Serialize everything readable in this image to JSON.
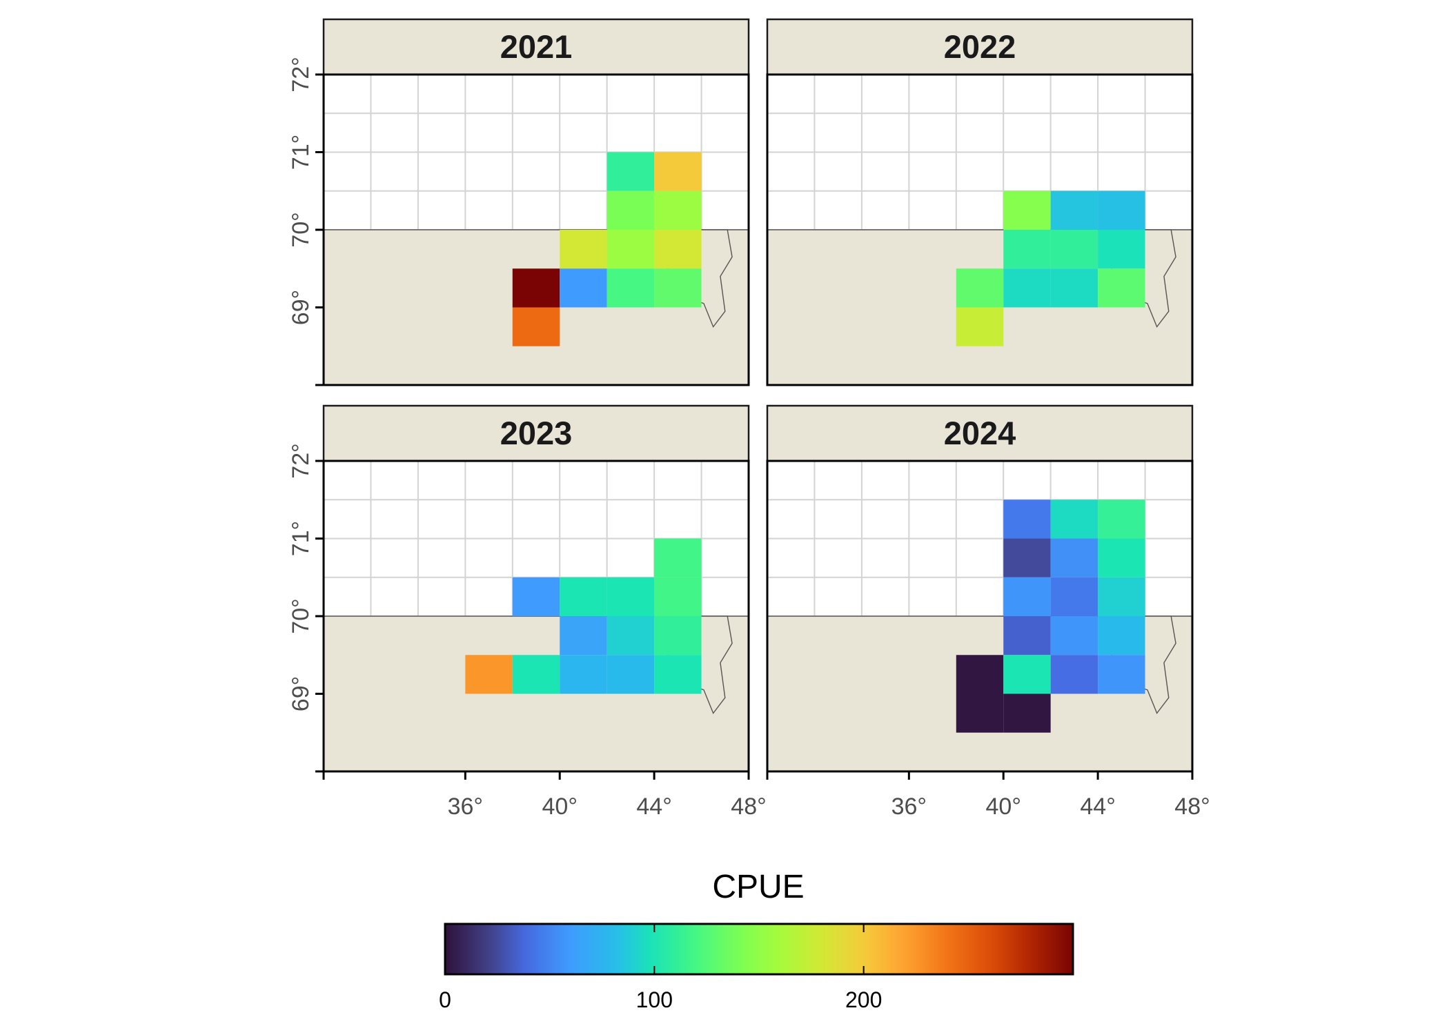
{
  "chart_data": {
    "type": "heatmap",
    "title": "",
    "xlabel": "",
    "ylabel": "",
    "xlim": [
      30,
      48
    ],
    "ylim": [
      68,
      72
    ],
    "x_ticks": [
      {
        "value": 36,
        "label": "36°"
      },
      {
        "value": 40,
        "label": "40°"
      },
      {
        "value": 44,
        "label": "44°"
      },
      {
        "value": 48,
        "label": "48°"
      }
    ],
    "y_ticks": [
      {
        "value": 69,
        "label": "69°"
      },
      {
        "value": 70,
        "label": "70°"
      },
      {
        "value": 71,
        "label": "71°"
      },
      {
        "value": 72,
        "label": "72°"
      }
    ],
    "cell_size": {
      "lon": 2,
      "lat": 0.5
    },
    "grid": true,
    "colors": {
      "land": "#e8e4d6",
      "land_outline": "#555555",
      "strip_fill": "#e8e4d6",
      "grid_line": "#d3d3d3"
    },
    "colorbar": {
      "title": "CPUE",
      "min": 0,
      "max": 300,
      "ticks": [
        {
          "value": 0,
          "label": "0"
        },
        {
          "value": 100,
          "label": "100"
        },
        {
          "value": 200,
          "label": "200"
        }
      ],
      "palette": "turbo"
    },
    "facets": [
      {
        "label": "2021",
        "cells": [
          {
            "lon": 42,
            "lat": 70.5,
            "value": 110
          },
          {
            "lon": 44,
            "lat": 70.5,
            "value": 200
          },
          {
            "lon": 42,
            "lat": 70.0,
            "value": 140
          },
          {
            "lon": 44,
            "lat": 70.0,
            "value": 155
          },
          {
            "lon": 40,
            "lat": 69.5,
            "value": 180
          },
          {
            "lon": 42,
            "lat": 69.5,
            "value": 155
          },
          {
            "lon": 44,
            "lat": 69.5,
            "value": 180
          },
          {
            "lon": 38,
            "lat": 69.0,
            "value": 300
          },
          {
            "lon": 40,
            "lat": 69.0,
            "value": 60
          },
          {
            "lon": 42,
            "lat": 69.0,
            "value": 120
          },
          {
            "lon": 44,
            "lat": 69.0,
            "value": 130
          },
          {
            "lon": 38,
            "lat": 68.5,
            "value": 245
          }
        ]
      },
      {
        "label": "2022",
        "cells": [
          {
            "lon": 40,
            "lat": 70.0,
            "value": 145
          },
          {
            "lon": 42,
            "lat": 70.0,
            "value": 85
          },
          {
            "lon": 44,
            "lat": 70.0,
            "value": 83
          },
          {
            "lon": 40,
            "lat": 69.5,
            "value": 110
          },
          {
            "lon": 42,
            "lat": 69.5,
            "value": 110
          },
          {
            "lon": 44,
            "lat": 69.5,
            "value": 98
          },
          {
            "lon": 38,
            "lat": 69.0,
            "value": 130
          },
          {
            "lon": 40,
            "lat": 69.0,
            "value": 95
          },
          {
            "lon": 42,
            "lat": 69.0,
            "value": 95
          },
          {
            "lon": 44,
            "lat": 69.0,
            "value": 128
          },
          {
            "lon": 38,
            "lat": 68.5,
            "value": 175
          }
        ]
      },
      {
        "label": "2023",
        "cells": [
          {
            "lon": 44,
            "lat": 70.5,
            "value": 118
          },
          {
            "lon": 38,
            "lat": 70.0,
            "value": 60
          },
          {
            "lon": 40,
            "lat": 70.0,
            "value": 100
          },
          {
            "lon": 42,
            "lat": 70.0,
            "value": 100
          },
          {
            "lon": 44,
            "lat": 70.0,
            "value": 118
          },
          {
            "lon": 40,
            "lat": 69.5,
            "value": 65
          },
          {
            "lon": 42,
            "lat": 69.5,
            "value": 90
          },
          {
            "lon": 44,
            "lat": 69.5,
            "value": 110
          },
          {
            "lon": 36,
            "lat": 69.0,
            "value": 225
          },
          {
            "lon": 38,
            "lat": 69.0,
            "value": 100
          },
          {
            "lon": 40,
            "lat": 69.0,
            "value": 77
          },
          {
            "lon": 42,
            "lat": 69.0,
            "value": 80
          },
          {
            "lon": 44,
            "lat": 69.0,
            "value": 100
          }
        ]
      },
      {
        "label": "2024",
        "cells": [
          {
            "lon": 40,
            "lat": 71.0,
            "value": 45
          },
          {
            "lon": 42,
            "lat": 71.0,
            "value": 95
          },
          {
            "lon": 44,
            "lat": 71.0,
            "value": 112
          },
          {
            "lon": 40,
            "lat": 70.5,
            "value": 25
          },
          {
            "lon": 42,
            "lat": 70.5,
            "value": 55
          },
          {
            "lon": 44,
            "lat": 70.5,
            "value": 100
          },
          {
            "lon": 40,
            "lat": 70.0,
            "value": 57
          },
          {
            "lon": 42,
            "lat": 70.0,
            "value": 45
          },
          {
            "lon": 44,
            "lat": 70.0,
            "value": 90
          },
          {
            "lon": 40,
            "lat": 69.5,
            "value": 35
          },
          {
            "lon": 42,
            "lat": 69.5,
            "value": 57
          },
          {
            "lon": 44,
            "lat": 69.5,
            "value": 80
          },
          {
            "lon": 38,
            "lat": 69.0,
            "value": 2
          },
          {
            "lon": 40,
            "lat": 69.0,
            "value": 100
          },
          {
            "lon": 42,
            "lat": 69.0,
            "value": 40
          },
          {
            "lon": 44,
            "lat": 69.0,
            "value": 57
          },
          {
            "lon": 38,
            "lat": 68.5,
            "value": 2
          },
          {
            "lon": 40,
            "lat": 68.5,
            "value": 2
          }
        ]
      }
    ]
  }
}
